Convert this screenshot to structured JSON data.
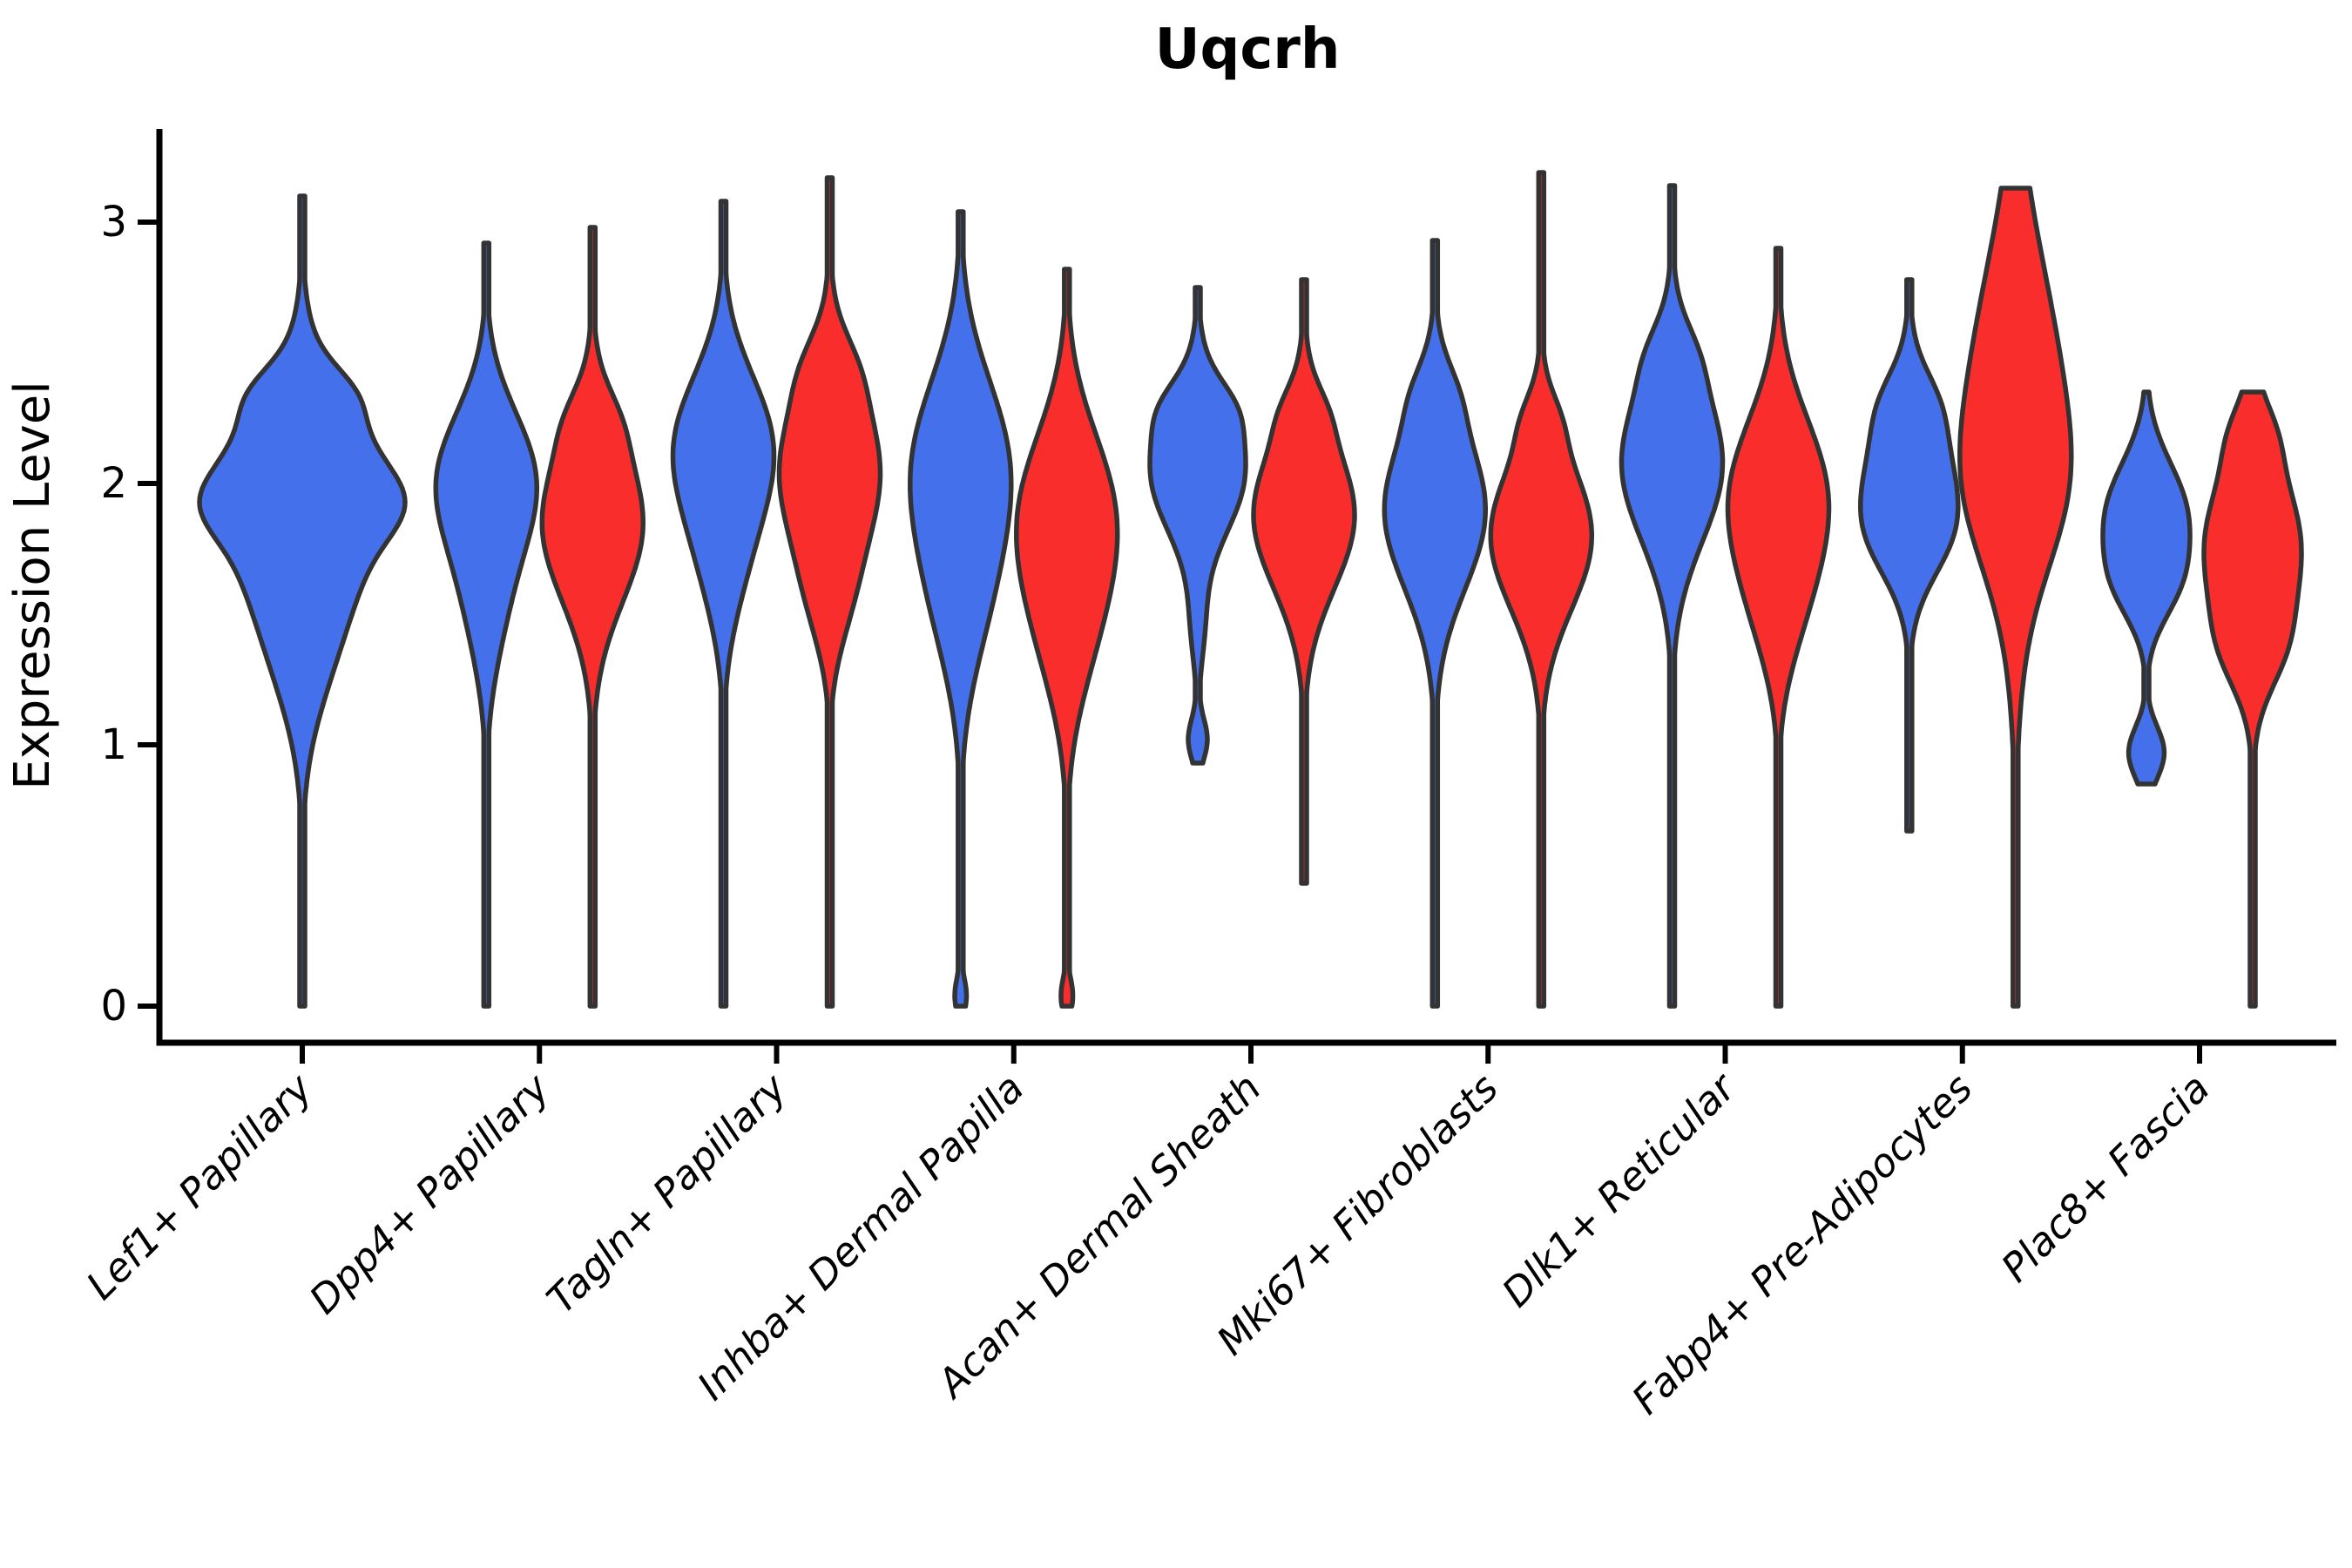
{
  "chart_data": {
    "type": "violin",
    "title": "Uqcrh",
    "ylabel": "Expression Level",
    "xlabel": "",
    "yticks": [
      0,
      1,
      2,
      3
    ],
    "ylim": [
      -0.15,
      3.35
    ],
    "grid": false,
    "legend": "none",
    "background": "#ffffff",
    "axis_color": "#000000",
    "outline_color": "#333333",
    "split_colors": {
      "blue": "#4470EC",
      "red": "#FA2D2D"
    },
    "categories": [
      "Lef1+ Papillary",
      "Dpp4+ Papillary",
      "Tagln+ Papillary",
      "Inhba+ Dermal Papilla",
      "Acan+ Dermal Sheath",
      "Mki67+ Fibroblasts",
      "Dlk1+ Reticular",
      "Fabp4+ Pre-Adipocytes",
      "Plac8+ Fascia"
    ],
    "violins": [
      {
        "category": "Lef1+ Papillary",
        "split": "blue",
        "x_offset": 0,
        "half_width": 118,
        "min": 0,
        "max": 3.1,
        "density_components": [
          [
            2.0,
            0.3,
            1.0
          ],
          [
            2.35,
            0.1,
            0.22
          ],
          [
            1.92,
            0.12,
            0.28
          ],
          [
            1.45,
            0.3,
            0.42
          ]
        ]
      },
      {
        "category": "Dpp4+ Papillary",
        "split": "blue",
        "x_offset": -61,
        "half_width": 58,
        "min": 0,
        "max": 2.92,
        "density_components": [
          [
            2.02,
            0.26,
            1.0
          ],
          [
            1.55,
            0.26,
            0.35
          ]
        ]
      },
      {
        "category": "Dpp4+ Papillary",
        "split": "red",
        "x_offset": 61,
        "half_width": 58,
        "min": 0,
        "max": 2.98,
        "density_components": [
          [
            1.85,
            0.3,
            1.0
          ],
          [
            2.25,
            0.12,
            0.18
          ]
        ]
      },
      {
        "category": "Tagln+ Papillary",
        "split": "blue",
        "x_offset": -61,
        "half_width": 58,
        "min": 0,
        "max": 3.08,
        "density_components": [
          [
            2.15,
            0.27,
            1.0
          ],
          [
            1.7,
            0.25,
            0.35
          ]
        ]
      },
      {
        "category": "Tagln+ Papillary",
        "split": "red",
        "x_offset": 61,
        "half_width": 58,
        "min": 0,
        "max": 3.17,
        "density_components": [
          [
            2.05,
            0.3,
            1.0
          ],
          [
            2.45,
            0.13,
            0.2
          ],
          [
            1.55,
            0.2,
            0.25
          ]
        ]
      },
      {
        "category": "Inhba+ Dermal Papilla",
        "split": "blue",
        "x_offset": -61,
        "half_width": 58,
        "min": 0,
        "max": 3.04,
        "density_components": [
          [
            2.08,
            0.33,
            1.0
          ],
          [
            1.55,
            0.3,
            0.45
          ],
          [
            0.04,
            0.07,
            0.13
          ]
        ]
      },
      {
        "category": "Inhba+ Dermal Papilla",
        "split": "red",
        "x_offset": 61,
        "half_width": 58,
        "min": 0,
        "max": 2.82,
        "density_components": [
          [
            1.88,
            0.32,
            1.0
          ],
          [
            1.4,
            0.28,
            0.38
          ],
          [
            0.04,
            0.07,
            0.13
          ]
        ]
      },
      {
        "category": "Acan+ Dermal Sheath",
        "split": "blue",
        "x_offset": -61,
        "half_width": 55,
        "min": 0.93,
        "max": 2.75,
        "density_components": [
          [
            2.05,
            0.24,
            1.0
          ],
          [
            2.3,
            0.1,
            0.25
          ],
          [
            1.45,
            0.15,
            0.12
          ],
          [
            1.02,
            0.08,
            0.2
          ]
        ]
      },
      {
        "category": "Acan+ Dermal Sheath",
        "split": "red",
        "x_offset": 61,
        "half_width": 58,
        "min": 0.47,
        "max": 2.78,
        "density_components": [
          [
            1.88,
            0.28,
            1.0
          ],
          [
            2.28,
            0.1,
            0.15
          ]
        ]
      },
      {
        "category": "Mki67+ Fibroblasts",
        "split": "blue",
        "x_offset": -61,
        "half_width": 58,
        "min": 0,
        "max": 2.93,
        "density_components": [
          [
            1.9,
            0.3,
            1.0
          ],
          [
            2.35,
            0.12,
            0.18
          ]
        ]
      },
      {
        "category": "Mki67+ Fibroblasts",
        "split": "red",
        "x_offset": 61,
        "half_width": 58,
        "min": 0,
        "max": 3.19,
        "density_components": [
          [
            1.8,
            0.28,
            1.0
          ],
          [
            2.25,
            0.1,
            0.15
          ]
        ]
      },
      {
        "category": "Dlk1+ Reticular",
        "split": "blue",
        "x_offset": -61,
        "half_width": 58,
        "min": 0,
        "max": 3.14,
        "density_components": [
          [
            2.08,
            0.3,
            1.0
          ],
          [
            2.5,
            0.12,
            0.18
          ]
        ]
      },
      {
        "category": "Dlk1+ Reticular",
        "split": "red",
        "x_offset": 61,
        "half_width": 58,
        "min": 0,
        "max": 2.9,
        "density_components": [
          [
            1.95,
            0.3,
            1.0
          ],
          [
            1.5,
            0.24,
            0.3
          ]
        ]
      },
      {
        "category": "Fabp4+ Pre-Adipocytes",
        "split": "blue",
        "x_offset": -61,
        "half_width": 56,
        "min": 0.67,
        "max": 2.78,
        "density_components": [
          [
            2.02,
            0.26,
            1.0
          ],
          [
            2.32,
            0.12,
            0.25
          ],
          [
            1.78,
            0.16,
            0.4
          ]
        ]
      },
      {
        "category": "Fabp4+ Pre-Adipocytes",
        "split": "red",
        "x_offset": 61,
        "half_width": 64,
        "min": 0,
        "max": 3.13,
        "density_components": [
          [
            2.3,
            0.55,
            1.0
          ],
          [
            1.95,
            0.28,
            0.35
          ]
        ]
      },
      {
        "category": "Plac8+ Fascia",
        "split": "blue",
        "x_offset": -61,
        "half_width": 50,
        "min": 0.85,
        "max": 2.35,
        "density_components": [
          [
            1.88,
            0.2,
            1.0
          ],
          [
            1.6,
            0.14,
            0.5
          ],
          [
            0.97,
            0.1,
            0.45
          ]
        ]
      },
      {
        "category": "Plac8+ Fascia",
        "split": "red",
        "x_offset": 61,
        "half_width": 56,
        "min": 0,
        "max": 2.35,
        "density_components": [
          [
            1.75,
            0.3,
            1.0
          ],
          [
            2.2,
            0.12,
            0.2
          ],
          [
            1.35,
            0.15,
            0.3
          ]
        ]
      }
    ]
  }
}
